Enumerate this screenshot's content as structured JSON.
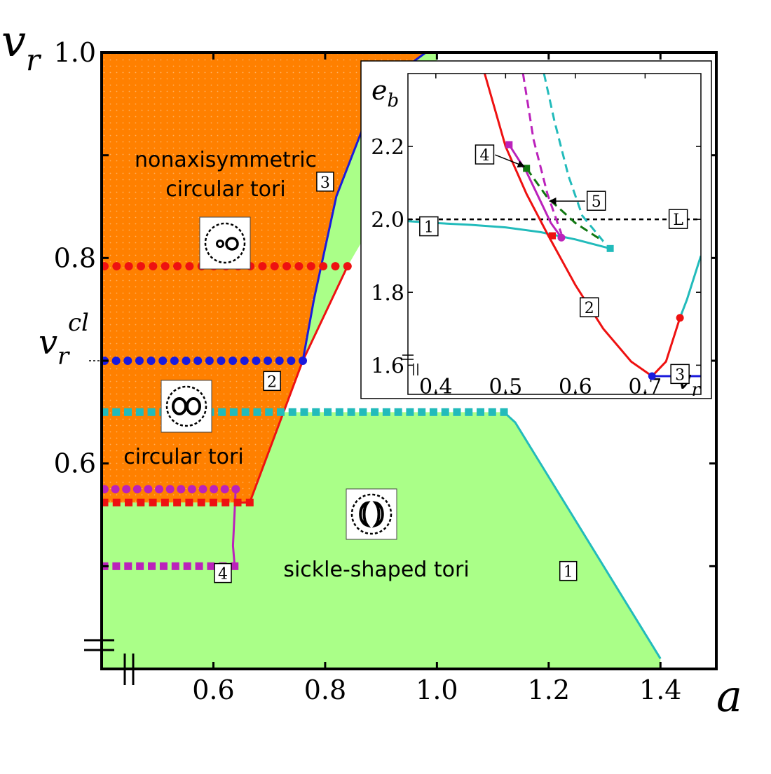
{
  "chart_data": [
    {
      "type": "line",
      "title": "",
      "xlabel": "a",
      "ylabel": "v_r",
      "ylabel_italic": "v",
      "ylabel_sub": "r",
      "xlim": [
        0.4,
        1.5
      ],
      "ylim": [
        0.4,
        1.0
      ],
      "xticks": [
        0.6,
        0.8,
        1.0,
        1.2,
        1.4
      ],
      "xtick_labels": [
        "0.6",
        "0.8",
        "1.0",
        "1.2",
        "1.4"
      ],
      "yticks": [
        0.6,
        0.8,
        1.0
      ],
      "ytick_labels": [
        "0.6",
        "0.8",
        "1.0"
      ],
      "v_cl": {
        "value": 0.7,
        "label_main": "v",
        "label_sub": "r",
        "label_sup": "cl"
      },
      "region_labels": {
        "nonaxisymmetric_line1": "nonaxisymmetric",
        "nonaxisymmetric_line2": "circular tori",
        "circular": "circular tori",
        "sickle": "sickle-shaped tori"
      },
      "colors": {
        "orange": "#ff8000",
        "green": "#aaff88",
        "cyan": "#22bbbb",
        "blue": "#1a1add",
        "red": "#ee1111",
        "magenta": "#bb22bb"
      },
      "series": [
        {
          "name": "1",
          "label": "1",
          "color": "#22bbbb",
          "x": [
            1.12,
            1.14,
            1.4
          ],
          "y": [
            0.65,
            0.64,
            0.41
          ]
        },
        {
          "name": "2",
          "label": "2",
          "color": "#ee1111",
          "x": [
            0.65,
            0.665,
            0.76,
            0.84
          ],
          "y": [
            0.562,
            0.562,
            0.7,
            0.792
          ]
        },
        {
          "name": "3",
          "label": "3",
          "color": "#1a1add",
          "x": [
            0.76,
            0.78,
            0.82,
            0.87,
            0.93,
            0.98,
            1.0
          ],
          "y": [
            0.7,
            0.76,
            0.86,
            0.93,
            0.98,
            1.0,
            1.0
          ]
        },
        {
          "name": "4",
          "label": "4",
          "color": "#bb22bb",
          "x": [
            0.64,
            0.635,
            0.638
          ],
          "y": [
            0.575,
            0.52,
            0.5
          ]
        }
      ],
      "dotted_lines": [
        {
          "name": "red-circles",
          "marker": "circle",
          "color": "#ee1111",
          "y": 0.792,
          "x_start": 0.405,
          "x_end": 0.84,
          "count": 21
        },
        {
          "name": "blue-circles",
          "marker": "circle",
          "color": "#1a1add",
          "y": 0.7,
          "x_start": 0.405,
          "x_end": 0.76,
          "count": 18
        },
        {
          "name": "cyan-squares",
          "marker": "square",
          "color": "#22bbbb",
          "y": 0.65,
          "x_start": 0.405,
          "x_end": 1.12,
          "count": 35
        },
        {
          "name": "magenta-circles",
          "marker": "circle",
          "color": "#bb22bb",
          "y": 0.575,
          "x_start": 0.405,
          "x_end": 0.64,
          "count": 13
        },
        {
          "name": "red-squares",
          "marker": "square",
          "color": "#ee1111",
          "y": 0.562,
          "x_start": 0.405,
          "x_end": 0.665,
          "count": 13
        },
        {
          "name": "magenta-squares",
          "marker": "square",
          "color": "#bb22bb",
          "y": 0.5,
          "x_start": 0.405,
          "x_end": 0.638,
          "count": 12
        }
      ]
    },
    {
      "type": "line",
      "title": "",
      "xlabel": "v_r",
      "xlabel_italic": "v",
      "xlabel_sub": "r",
      "ylabel": "e_b",
      "ylabel_italic": "e",
      "ylabel_sub": "b",
      "xlim": [
        0.36,
        0.78
      ],
      "ylim": [
        1.52,
        2.4
      ],
      "xticks": [
        0.4,
        0.5,
        0.6,
        0.7
      ],
      "xtick_labels": [
        "0.4",
        "0.5",
        "0.6",
        "0.7"
      ],
      "yticks": [
        1.6,
        1.8,
        2.0,
        2.2
      ],
      "ytick_labels": [
        "1.6",
        "1.8",
        "2.0",
        "2.2"
      ],
      "L_level": {
        "value": 2.0,
        "label": "L"
      },
      "series": [
        {
          "name": "1",
          "label": "1",
          "color": "#22bbbb",
          "style": "solid",
          "x": [
            0.36,
            0.4,
            0.45,
            0.5,
            0.55,
            0.6,
            0.65
          ],
          "y": [
            1.995,
            1.99,
            1.985,
            1.978,
            1.965,
            1.945,
            1.92
          ]
        },
        {
          "name": "1-right",
          "label": "",
          "color": "#22bbbb",
          "style": "solid",
          "x": [
            0.75,
            0.76,
            0.77,
            0.78
          ],
          "y": [
            1.73,
            1.78,
            1.84,
            1.9
          ]
        },
        {
          "name": "2",
          "label": "2",
          "color": "#ee1111",
          "style": "solid",
          "x": [
            0.47,
            0.5,
            0.53,
            0.56,
            0.6,
            0.64,
            0.68,
            0.71,
            0.73,
            0.75
          ],
          "y": [
            2.4,
            2.2,
            2.07,
            1.96,
            1.82,
            1.7,
            1.61,
            1.57,
            1.61,
            1.73
          ]
        },
        {
          "name": "3",
          "label": "3",
          "color": "#1a1add",
          "style": "solid",
          "x": [
            0.71,
            0.78
          ],
          "y": [
            1.57,
            1.57
          ]
        },
        {
          "name": "4",
          "label": "4",
          "color": "#bb22bb",
          "style": "solid",
          "x": [
            0.505,
            0.53,
            0.55,
            0.565,
            0.58
          ],
          "y": [
            2.205,
            2.13,
            2.05,
            1.99,
            1.95
          ]
        },
        {
          "name": "5",
          "label": "5",
          "color": "#117711",
          "style": "dashed",
          "x": [
            0.53,
            0.56,
            0.6,
            0.64
          ],
          "y": [
            2.14,
            2.06,
            1.99,
            1.94
          ]
        },
        {
          "name": "magenta-dashed",
          "label": "",
          "color": "#bb22bb",
          "style": "dashed",
          "x": [
            0.525,
            0.54,
            0.56,
            0.58
          ],
          "y": [
            2.4,
            2.22,
            2.07,
            1.96
          ]
        },
        {
          "name": "cyan-dashed",
          "label": "",
          "color": "#22bbbb",
          "style": "dashed",
          "x": [
            0.555,
            0.57,
            0.59,
            0.61,
            0.64
          ],
          "y": [
            2.4,
            2.27,
            2.12,
            2.01,
            1.94
          ]
        }
      ],
      "markers": [
        {
          "name": "magenta-square-top",
          "shape": "square",
          "color": "#bb22bb",
          "x": 0.505,
          "y": 2.205
        },
        {
          "name": "green-square",
          "shape": "square",
          "color": "#117711",
          "x": 0.53,
          "y": 2.14
        },
        {
          "name": "red-square",
          "shape": "square",
          "color": "#ee1111",
          "x": 0.567,
          "y": 1.955
        },
        {
          "name": "magenta-circle",
          "shape": "circle",
          "color": "#bb22bb",
          "x": 0.58,
          "y": 1.95
        },
        {
          "name": "cyan-square",
          "shape": "square",
          "color": "#22bbbb",
          "x": 0.65,
          "y": 1.92
        },
        {
          "name": "blue-circle",
          "shape": "circle",
          "color": "#1a1add",
          "x": 0.71,
          "y": 1.57
        },
        {
          "name": "red-circle",
          "shape": "circle",
          "color": "#ee1111",
          "x": 0.75,
          "y": 1.73
        }
      ]
    }
  ]
}
